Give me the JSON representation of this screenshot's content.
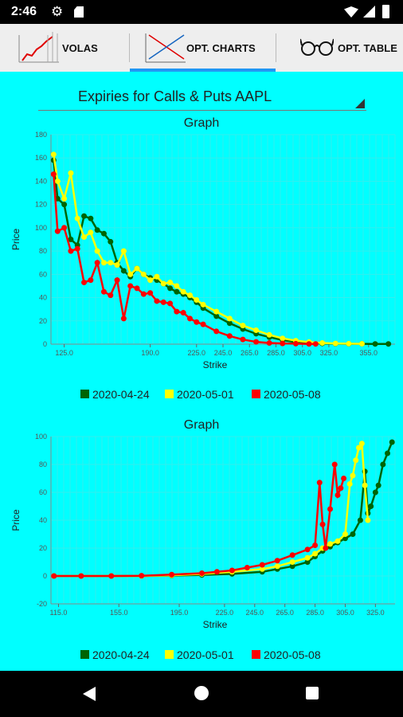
{
  "status": {
    "time": "2:46"
  },
  "tabs": [
    {
      "label": "VOLAS",
      "active": false
    },
    {
      "label": "OPT. CHARTS",
      "active": true
    },
    {
      "label": "OPT. TABLE",
      "active": false
    }
  ],
  "spinner": {
    "value": "Expiries for Calls & Puts AAPL"
  },
  "colors": {
    "2020-04-24": "#006400",
    "2020-05-01": "#FFFF00",
    "2020-05-08": "#FF0000",
    "background": "#00FFFF"
  },
  "chart_data": [
    {
      "type": "line",
      "title": "Graph",
      "xlabel": "Strike",
      "ylabel": "Price",
      "xlim": [
        115,
        375
      ],
      "ylim": [
        0,
        180
      ],
      "x_ticks": [
        125,
        190,
        225,
        245,
        265,
        285,
        305,
        325,
        355
      ],
      "x_tick_labels": [
        "125.0",
        "190.0",
        "225.0",
        "245.0",
        "265.0",
        "285.0",
        "305.0",
        "325.0",
        "355.0"
      ],
      "y_ticks": [
        0,
        20,
        40,
        60,
        80,
        100,
        120,
        140,
        160,
        180
      ],
      "legend": "bottom",
      "series": [
        {
          "name": "2020-04-24",
          "color": "#006400",
          "x": [
            117,
            120,
            125,
            130,
            135,
            140,
            145,
            150,
            155,
            160,
            165,
            170,
            175,
            180,
            185,
            190,
            195,
            200,
            205,
            210,
            215,
            220,
            225,
            230,
            240,
            250,
            260,
            270,
            280,
            290,
            300,
            310,
            320,
            330,
            340,
            350,
            360,
            370
          ],
          "y": [
            158,
            125,
            120,
            90,
            85,
            110,
            108,
            98,
            95,
            88,
            70,
            63,
            58,
            65,
            60,
            57,
            55,
            52,
            48,
            45,
            43,
            40,
            36,
            31,
            24,
            18,
            13,
            9,
            6,
            3.5,
            1.8,
            1,
            0.6,
            0.4,
            0.3,
            0.3,
            0.2,
            0.2
          ]
        },
        {
          "name": "2020-05-01",
          "color": "#FFFF00",
          "x": [
            117,
            120,
            125,
            130,
            135,
            140,
            145,
            150,
            155,
            160,
            165,
            170,
            175,
            180,
            185,
            190,
            195,
            200,
            205,
            210,
            215,
            220,
            225,
            230,
            240,
            250,
            260,
            270,
            280,
            290,
            300,
            310,
            320,
            330,
            340,
            350
          ],
          "y": [
            163,
            140,
            125,
            147,
            108,
            92,
            96,
            80,
            70,
            70,
            68,
            80,
            60,
            65,
            60,
            55,
            58,
            52,
            53,
            50,
            45,
            42,
            38,
            34,
            28,
            22,
            16,
            12,
            8,
            5,
            3,
            1.8,
            1,
            0.6,
            0.4,
            0.3
          ]
        },
        {
          "name": "2020-05-08",
          "color": "#FF0000",
          "x": [
            117,
            120,
            125,
            130,
            135,
            140,
            145,
            150,
            155,
            160,
            165,
            170,
            175,
            180,
            185,
            190,
            195,
            200,
            205,
            210,
            215,
            220,
            225,
            230,
            240,
            250,
            260,
            270,
            280,
            290,
            300,
            310,
            315
          ],
          "y": [
            146,
            97,
            100,
            80,
            82,
            53,
            55,
            70,
            45,
            42,
            55,
            22,
            50,
            48,
            43,
            44,
            37,
            36,
            35,
            28,
            27,
            22,
            19,
            17,
            11,
            7,
            4,
            2,
            1,
            0.6,
            0.4,
            0.2,
            0.2
          ]
        }
      ]
    },
    {
      "type": "line",
      "title": "Graph",
      "xlabel": "Strike",
      "ylabel": "Price",
      "xlim": [
        110,
        338
      ],
      "ylim": [
        -20,
        100
      ],
      "x_ticks": [
        115,
        155,
        195,
        225,
        245,
        265,
        285,
        305,
        325
      ],
      "x_tick_labels": [
        "115.0",
        "155.0",
        "195.0",
        "225.0",
        "245.0",
        "265.0",
        "285.0",
        "305.0",
        "325.0"
      ],
      "y_ticks": [
        -20,
        0,
        20,
        40,
        60,
        80,
        100
      ],
      "legend": "bottom",
      "series": [
        {
          "name": "2020-04-24",
          "color": "#006400",
          "x": [
            112,
            130,
            150,
            170,
            190,
            210,
            230,
            250,
            260,
            270,
            280,
            285,
            290,
            295,
            300,
            305,
            310,
            315,
            318,
            320,
            322,
            325,
            327,
            330,
            333,
            336
          ],
          "y": [
            0,
            0,
            0,
            0,
            0.3,
            0.8,
            1.5,
            3,
            5,
            7,
            10,
            14,
            18,
            21,
            24,
            27,
            30,
            40,
            75,
            45,
            50,
            60,
            65,
            80,
            88,
            96
          ]
        },
        {
          "name": "2020-05-01",
          "color": "#FFFF00",
          "x": [
            112,
            130,
            150,
            170,
            190,
            210,
            230,
            250,
            260,
            270,
            280,
            285,
            290,
            295,
            300,
            305,
            308,
            310,
            312,
            314,
            316,
            318,
            320
          ],
          "y": [
            0,
            0,
            0,
            0,
            0.5,
            1.5,
            3,
            5,
            7,
            10,
            13,
            16,
            20,
            23,
            25,
            30,
            66,
            72,
            83,
            92,
            95,
            65,
            40
          ]
        },
        {
          "name": "2020-05-08",
          "color": "#FF0000",
          "x": [
            112,
            130,
            150,
            170,
            190,
            210,
            220,
            230,
            240,
            250,
            260,
            270,
            280,
            285,
            288,
            290,
            292,
            295,
            298,
            300,
            302,
            304
          ],
          "y": [
            0,
            0,
            0,
            0.2,
            1,
            2,
            3,
            4,
            6,
            8,
            11,
            15,
            19,
            22,
            67,
            37,
            20,
            48,
            80,
            58,
            63,
            70
          ]
        }
      ]
    }
  ]
}
